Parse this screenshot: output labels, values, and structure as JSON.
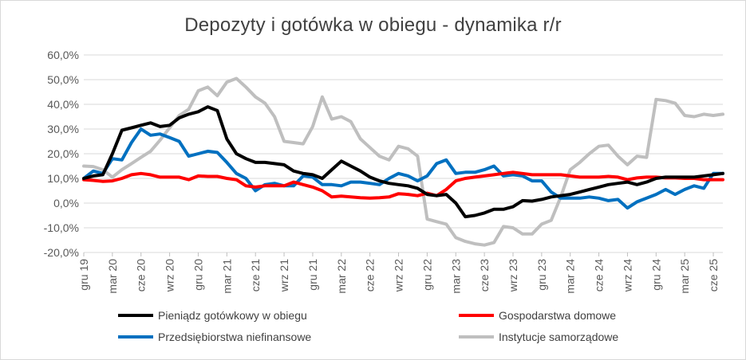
{
  "chart_data": {
    "type": "line",
    "title": "Depozyty i gotówka w obiegu - dynamika r/r",
    "ylim": [
      -20,
      60
    ],
    "y_ticks": [
      -20,
      -10,
      0,
      10,
      20,
      30,
      40,
      50,
      60
    ],
    "y_tick_labels": [
      "-20,0%",
      "-10,0%",
      "0,0%",
      "10,0%",
      "20,0%",
      "30,0%",
      "40,0%",
      "50,0%",
      "60,0%"
    ],
    "grid": "horizontal",
    "legend_position": "bottom",
    "x_start": "2019-12",
    "x_labels": [
      {
        "month_index": 0,
        "label": "gru 19"
      },
      {
        "month_index": 3,
        "label": "mar 20"
      },
      {
        "month_index": 6,
        "label": "cze 20"
      },
      {
        "month_index": 9,
        "label": "wrz 20"
      },
      {
        "month_index": 12,
        "label": "gru 20"
      },
      {
        "month_index": 15,
        "label": "mar 21"
      },
      {
        "month_index": 18,
        "label": "cze 21"
      },
      {
        "month_index": 21,
        "label": "wrz 21"
      },
      {
        "month_index": 24,
        "label": "gru 21"
      },
      {
        "month_index": 27,
        "label": "mar 22"
      },
      {
        "month_index": 30,
        "label": "cze 22"
      },
      {
        "month_index": 33,
        "label": "wrz 22"
      },
      {
        "month_index": 36,
        "label": "gru 22"
      },
      {
        "month_index": 39,
        "label": "mar 23"
      },
      {
        "month_index": 42,
        "label": "cze 23"
      },
      {
        "month_index": 45,
        "label": "wrz 23"
      },
      {
        "month_index": 48,
        "label": "gru 23"
      },
      {
        "month_index": 51,
        "label": "mar 24"
      },
      {
        "month_index": 54,
        "label": "cze 24"
      },
      {
        "month_index": 57,
        "label": "wrz 24"
      },
      {
        "month_index": 60,
        "label": "gru 24"
      },
      {
        "month_index": 63,
        "label": "mar 25"
      },
      {
        "month_index": 66,
        "label": "cze 25"
      }
    ],
    "series": [
      {
        "name": "Instytucje samorządowe",
        "color": "#bfbfbf",
        "values": [
          15,
          14.8,
          13.5,
          10.5,
          13.5,
          16,
          18.5,
          21,
          25.5,
          30.5,
          35.5,
          38,
          45.5,
          47,
          43.5,
          49,
          50.5,
          47,
          43,
          40.5,
          35,
          25,
          24.5,
          24,
          31,
          43,
          34,
          35,
          33,
          26,
          22.5,
          19,
          17.5,
          23,
          22,
          19,
          -6.5,
          -7.5,
          -8.5,
          -14,
          -15.5,
          -16.5,
          -17,
          -16,
          -9.5,
          -10,
          -12.5,
          -12.5,
          -8.5,
          -7,
          2.5,
          13.5,
          16.5,
          20,
          23,
          23.5,
          19,
          15.5,
          19,
          18.5,
          42,
          41.5,
          40.5,
          35.5,
          35,
          36,
          35.5,
          36
        ]
      },
      {
        "name": "Przedsiębiorstwa niefinansowe",
        "color": "#0070c0",
        "values": [
          10,
          13,
          12,
          18,
          17.5,
          24.5,
          30,
          27.5,
          28,
          26.5,
          25,
          19,
          20,
          21,
          20.5,
          16.5,
          12,
          10,
          5,
          7.5,
          8,
          7,
          7,
          11,
          10.5,
          7.5,
          7.5,
          7,
          8.5,
          8.5,
          8,
          7.5,
          10,
          12,
          11,
          9,
          11,
          16,
          17.5,
          12,
          12.5,
          12.5,
          13.5,
          15,
          11,
          11.5,
          11,
          9,
          9,
          4.5,
          2,
          2,
          2,
          2.5,
          2,
          1,
          1.5,
          -2,
          0.5,
          2,
          3.5,
          5.5,
          3.5,
          5.5,
          7,
          6,
          12,
          12
        ]
      },
      {
        "name": "Gospodarstwa domowe",
        "color": "#ff0000",
        "values": [
          9.5,
          9.2,
          8.8,
          9,
          10,
          11.5,
          12,
          11.5,
          10.5,
          10.5,
          10.5,
          9.5,
          11,
          10.8,
          10.8,
          10,
          9.5,
          7,
          6.5,
          7,
          7,
          7,
          8.5,
          7.5,
          6.5,
          5,
          2.5,
          2.8,
          2.5,
          2.2,
          2,
          2.2,
          2.5,
          3.8,
          3.5,
          3,
          4,
          3,
          5.5,
          9,
          10,
          10.5,
          11,
          11.5,
          12,
          12.5,
          12,
          11.5,
          11.5,
          11.5,
          11.5,
          11,
          10.5,
          10.5,
          10.5,
          10.8,
          10.5,
          9.5,
          10.2,
          10.5,
          10.5,
          10.2,
          10.2,
          10,
          10,
          9.5,
          9.5,
          9.5
        ]
      },
      {
        "name": "Pieniądz gotówkowy w obiegu",
        "color": "#000000",
        "values": [
          10,
          11,
          11.5,
          20,
          29.5,
          30.5,
          31.5,
          32.5,
          31,
          31.5,
          34.5,
          36,
          37,
          39,
          37.5,
          26,
          20,
          18,
          16.5,
          16.5,
          16,
          15.5,
          13,
          12,
          11.5,
          10,
          13.5,
          17,
          15,
          13,
          10.5,
          9,
          8,
          7.5,
          7,
          6,
          3.5,
          3,
          3.5,
          0,
          -5.5,
          -5,
          -4,
          -2.5,
          -2.5,
          -1.5,
          1,
          0.8,
          1.5,
          2.5,
          3,
          3.5,
          4.5,
          5.5,
          6.5,
          7.5,
          8,
          8.5,
          7.5,
          8.5,
          10,
          10.5,
          10.5,
          10.5,
          10.5,
          11,
          11.5,
          12
        ]
      }
    ],
    "legend_order": [
      "Pieniądz gotówkowy w obiegu",
      "Gospodarstwa domowe",
      "Przedsiębiorstwa niefinansowe",
      "Instytucje samorządowe"
    ]
  }
}
